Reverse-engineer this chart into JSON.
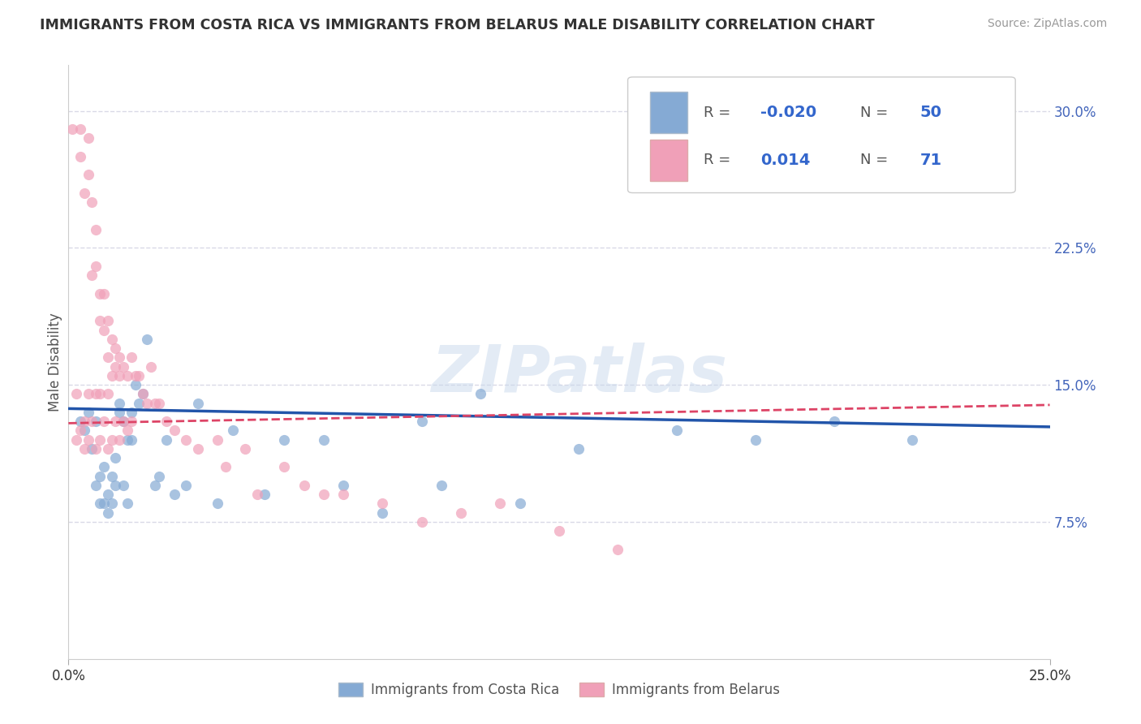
{
  "title": "IMMIGRANTS FROM COSTA RICA VS IMMIGRANTS FROM BELARUS MALE DISABILITY CORRELATION CHART",
  "source": "Source: ZipAtlas.com",
  "ylabel": "Male Disability",
  "xlim": [
    0.0,
    0.25
  ],
  "ylim": [
    0.0,
    0.325
  ],
  "yticks": [
    0.075,
    0.15,
    0.225,
    0.3
  ],
  "ytick_labels": [
    "7.5%",
    "15.0%",
    "22.5%",
    "30.0%"
  ],
  "grid_color": "#d0d0e0",
  "background_color": "#ffffff",
  "watermark": "ZIPatlas",
  "blue_color": "#85aad4",
  "pink_color": "#f0a0b8",
  "blue_line_color": "#2255aa",
  "pink_line_color": "#dd4466",
  "costa_rica_x": [
    0.003,
    0.004,
    0.005,
    0.006,
    0.007,
    0.007,
    0.008,
    0.008,
    0.009,
    0.009,
    0.01,
    0.01,
    0.011,
    0.011,
    0.012,
    0.012,
    0.013,
    0.013,
    0.014,
    0.014,
    0.015,
    0.015,
    0.016,
    0.016,
    0.017,
    0.018,
    0.019,
    0.02,
    0.022,
    0.023,
    0.025,
    0.027,
    0.03,
    0.033,
    0.038,
    0.042,
    0.05,
    0.055,
    0.065,
    0.07,
    0.08,
    0.09,
    0.095,
    0.105,
    0.115,
    0.13,
    0.155,
    0.175,
    0.195,
    0.215
  ],
  "costa_rica_y": [
    0.13,
    0.125,
    0.135,
    0.115,
    0.13,
    0.095,
    0.1,
    0.085,
    0.105,
    0.085,
    0.09,
    0.08,
    0.1,
    0.085,
    0.095,
    0.11,
    0.14,
    0.135,
    0.13,
    0.095,
    0.12,
    0.085,
    0.135,
    0.12,
    0.15,
    0.14,
    0.145,
    0.175,
    0.095,
    0.1,
    0.12,
    0.09,
    0.095,
    0.14,
    0.085,
    0.125,
    0.09,
    0.12,
    0.12,
    0.095,
    0.08,
    0.13,
    0.095,
    0.145,
    0.085,
    0.115,
    0.125,
    0.12,
    0.13,
    0.12
  ],
  "belarus_x": [
    0.001,
    0.002,
    0.002,
    0.003,
    0.003,
    0.003,
    0.004,
    0.004,
    0.004,
    0.005,
    0.005,
    0.005,
    0.005,
    0.006,
    0.006,
    0.006,
    0.007,
    0.007,
    0.007,
    0.007,
    0.008,
    0.008,
    0.008,
    0.008,
    0.009,
    0.009,
    0.009,
    0.01,
    0.01,
    0.01,
    0.01,
    0.011,
    0.011,
    0.011,
    0.012,
    0.012,
    0.012,
    0.013,
    0.013,
    0.013,
    0.014,
    0.014,
    0.015,
    0.015,
    0.016,
    0.016,
    0.017,
    0.018,
    0.019,
    0.02,
    0.021,
    0.022,
    0.023,
    0.025,
    0.027,
    0.03,
    0.033,
    0.038,
    0.04,
    0.045,
    0.048,
    0.055,
    0.06,
    0.065,
    0.07,
    0.08,
    0.09,
    0.1,
    0.11,
    0.125,
    0.14
  ],
  "belarus_y": [
    0.29,
    0.145,
    0.12,
    0.29,
    0.275,
    0.125,
    0.255,
    0.13,
    0.115,
    0.285,
    0.265,
    0.145,
    0.12,
    0.25,
    0.21,
    0.13,
    0.235,
    0.215,
    0.145,
    0.115,
    0.2,
    0.185,
    0.145,
    0.12,
    0.2,
    0.18,
    0.13,
    0.185,
    0.165,
    0.145,
    0.115,
    0.175,
    0.155,
    0.12,
    0.17,
    0.16,
    0.13,
    0.165,
    0.155,
    0.12,
    0.16,
    0.13,
    0.155,
    0.125,
    0.165,
    0.13,
    0.155,
    0.155,
    0.145,
    0.14,
    0.16,
    0.14,
    0.14,
    0.13,
    0.125,
    0.12,
    0.115,
    0.12,
    0.105,
    0.115,
    0.09,
    0.105,
    0.095,
    0.09,
    0.09,
    0.085,
    0.075,
    0.08,
    0.085,
    0.07,
    0.06
  ]
}
